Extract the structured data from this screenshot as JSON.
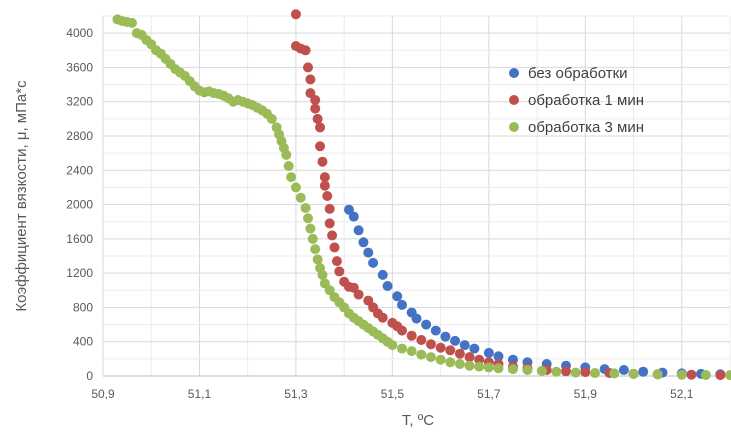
{
  "chart_data": {
    "type": "scatter",
    "title": "",
    "xlabel": "T, ºC",
    "ylabel": "Коэффициент вязкости, μ, мПа*с",
    "xlim": [
      50.9,
      52.2
    ],
    "ylim": [
      0,
      4200
    ],
    "x_ticks": [
      50.9,
      51.1,
      51.3,
      51.5,
      51.7,
      51.9,
      52.1
    ],
    "x_tick_labels": [
      "50,9",
      "51,1",
      "51,3",
      "51,5",
      "51,7",
      "51,9",
      "52,1"
    ],
    "y_ticks": [
      0,
      400,
      800,
      1200,
      1600,
      2000,
      2400,
      2800,
      3200,
      3600,
      4000
    ],
    "y_tick_labels": [
      "0",
      "400",
      "800",
      "1200",
      "1600",
      "2000",
      "2400",
      "2800",
      "3200",
      "3600",
      "4000"
    ],
    "grid": true,
    "legend_position": "top-right",
    "series": [
      {
        "name": "без обработки",
        "color": "#4472C4",
        "points": [
          [
            51.41,
            1940
          ],
          [
            51.42,
            1860
          ],
          [
            51.43,
            1700
          ],
          [
            51.44,
            1560
          ],
          [
            51.45,
            1440
          ],
          [
            51.46,
            1320
          ],
          [
            51.48,
            1180
          ],
          [
            51.49,
            1050
          ],
          [
            51.51,
            930
          ],
          [
            51.52,
            830
          ],
          [
            51.54,
            740
          ],
          [
            51.55,
            670
          ],
          [
            51.57,
            600
          ],
          [
            51.59,
            530
          ],
          [
            51.61,
            460
          ],
          [
            51.63,
            410
          ],
          [
            51.65,
            360
          ],
          [
            51.67,
            320
          ],
          [
            51.7,
            270
          ],
          [
            51.72,
            230
          ],
          [
            51.75,
            190
          ],
          [
            51.78,
            160
          ],
          [
            51.82,
            140
          ],
          [
            51.86,
            120
          ],
          [
            51.9,
            100
          ],
          [
            51.94,
            80
          ],
          [
            51.98,
            70
          ],
          [
            52.02,
            50
          ],
          [
            52.06,
            40
          ],
          [
            52.1,
            30
          ],
          [
            52.14,
            25
          ],
          [
            52.18,
            20
          ]
        ]
      },
      {
        "name": "обработка 1 мин",
        "color": "#C0504D",
        "points": [
          [
            51.3,
            4220
          ],
          [
            51.3,
            3850
          ],
          [
            51.31,
            3820
          ],
          [
            51.32,
            3800
          ],
          [
            51.325,
            3600
          ],
          [
            51.33,
            3460
          ],
          [
            51.33,
            3300
          ],
          [
            51.34,
            3220
          ],
          [
            51.34,
            3120
          ],
          [
            51.345,
            3000
          ],
          [
            51.35,
            2900
          ],
          [
            51.35,
            2680
          ],
          [
            51.355,
            2500
          ],
          [
            51.36,
            2320
          ],
          [
            51.36,
            2220
          ],
          [
            51.365,
            2100
          ],
          [
            51.37,
            1950
          ],
          [
            51.37,
            1780
          ],
          [
            51.375,
            1640
          ],
          [
            51.38,
            1500
          ],
          [
            51.385,
            1340
          ],
          [
            51.39,
            1220
          ],
          [
            51.4,
            1100
          ],
          [
            51.41,
            1040
          ],
          [
            51.42,
            1030
          ],
          [
            51.43,
            950
          ],
          [
            51.45,
            880
          ],
          [
            51.46,
            800
          ],
          [
            51.47,
            730
          ],
          [
            51.48,
            680
          ],
          [
            51.5,
            620
          ],
          [
            51.51,
            580
          ],
          [
            51.52,
            530
          ],
          [
            51.54,
            470
          ],
          [
            51.56,
            420
          ],
          [
            51.58,
            370
          ],
          [
            51.6,
            330
          ],
          [
            51.62,
            300
          ],
          [
            51.64,
            260
          ],
          [
            51.66,
            220
          ],
          [
            51.68,
            190
          ],
          [
            51.7,
            160
          ],
          [
            51.72,
            140
          ],
          [
            51.75,
            110
          ],
          [
            51.78,
            90
          ],
          [
            51.82,
            70
          ],
          [
            51.86,
            55
          ],
          [
            51.9,
            45
          ],
          [
            51.95,
            35
          ],
          [
            52.0,
            25
          ],
          [
            52.05,
            20
          ],
          [
            52.12,
            15
          ],
          [
            52.18,
            10
          ]
        ]
      },
      {
        "name": "обработка 3 мин",
        "color": "#9BBB59",
        "points": [
          [
            50.93,
            4160
          ],
          [
            50.94,
            4140
          ],
          [
            50.95,
            4130
          ],
          [
            50.96,
            4120
          ],
          [
            50.97,
            4000
          ],
          [
            50.98,
            3980
          ],
          [
            50.99,
            3920
          ],
          [
            51.0,
            3870
          ],
          [
            51.01,
            3800
          ],
          [
            51.02,
            3760
          ],
          [
            51.03,
            3700
          ],
          [
            51.04,
            3640
          ],
          [
            51.05,
            3580
          ],
          [
            51.06,
            3540
          ],
          [
            51.07,
            3500
          ],
          [
            51.08,
            3440
          ],
          [
            51.09,
            3380
          ],
          [
            51.1,
            3330
          ],
          [
            51.11,
            3310
          ],
          [
            51.12,
            3320
          ],
          [
            51.13,
            3300
          ],
          [
            51.14,
            3290
          ],
          [
            51.15,
            3270
          ],
          [
            51.16,
            3240
          ],
          [
            51.17,
            3200
          ],
          [
            51.18,
            3220
          ],
          [
            51.19,
            3200
          ],
          [
            51.2,
            3180
          ],
          [
            51.21,
            3160
          ],
          [
            51.22,
            3130
          ],
          [
            51.23,
            3100
          ],
          [
            51.24,
            3060
          ],
          [
            51.25,
            3000
          ],
          [
            51.26,
            2900
          ],
          [
            51.265,
            2820
          ],
          [
            51.27,
            2740
          ],
          [
            51.275,
            2660
          ],
          [
            51.28,
            2580
          ],
          [
            51.285,
            2450
          ],
          [
            51.29,
            2320
          ],
          [
            51.3,
            2200
          ],
          [
            51.31,
            2080
          ],
          [
            51.32,
            1960
          ],
          [
            51.325,
            1840
          ],
          [
            51.33,
            1720
          ],
          [
            51.335,
            1600
          ],
          [
            51.34,
            1480
          ],
          [
            51.345,
            1360
          ],
          [
            51.35,
            1260
          ],
          [
            51.355,
            1180
          ],
          [
            51.36,
            1080
          ],
          [
            51.37,
            1000
          ],
          [
            51.38,
            920
          ],
          [
            51.39,
            860
          ],
          [
            51.4,
            800
          ],
          [
            51.41,
            730
          ],
          [
            51.42,
            680
          ],
          [
            51.43,
            640
          ],
          [
            51.44,
            600
          ],
          [
            51.45,
            560
          ],
          [
            51.46,
            520
          ],
          [
            51.47,
            480
          ],
          [
            51.48,
            440
          ],
          [
            51.49,
            400
          ],
          [
            51.5,
            360
          ],
          [
            51.52,
            320
          ],
          [
            51.54,
            290
          ],
          [
            51.56,
            250
          ],
          [
            51.58,
            220
          ],
          [
            51.6,
            190
          ],
          [
            51.62,
            160
          ],
          [
            51.64,
            140
          ],
          [
            51.66,
            120
          ],
          [
            51.68,
            110
          ],
          [
            51.7,
            100
          ],
          [
            51.72,
            90
          ],
          [
            51.75,
            80
          ],
          [
            51.78,
            70
          ],
          [
            51.81,
            60
          ],
          [
            51.84,
            50
          ],
          [
            51.88,
            40
          ],
          [
            51.92,
            35
          ],
          [
            51.96,
            30
          ],
          [
            52.0,
            25
          ],
          [
            52.05,
            20
          ],
          [
            52.1,
            15
          ],
          [
            52.15,
            12
          ],
          [
            52.2,
            10
          ]
        ]
      }
    ]
  }
}
